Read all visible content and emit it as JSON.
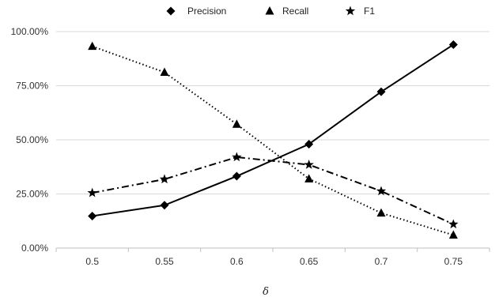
{
  "chart_data": {
    "type": "line",
    "title": "",
    "xlabel": "δ",
    "ylabel": "",
    "categories": [
      "0.5",
      "0.55",
      "0.6",
      "0.65",
      "0.7",
      "0.75"
    ],
    "y_ticks": [
      "0.00%",
      "25.00%",
      "50.00%",
      "75.00%",
      "100.00%"
    ],
    "ylim": [
      0,
      100
    ],
    "grid": "horizontal",
    "legend_position": "top",
    "series": [
      {
        "name": "Precision",
        "marker": "diamond",
        "line_style": "solid",
        "color": "#000000",
        "values": [
          14.8,
          19.8,
          33.2,
          48.0,
          72.2,
          94.0
        ]
      },
      {
        "name": "Recall",
        "marker": "triangle",
        "line_style": "dotted",
        "color": "#000000",
        "values": [
          93.2,
          81.2,
          57.2,
          32.0,
          16.2,
          6.0
        ]
      },
      {
        "name": "F1",
        "marker": "star",
        "line_style": "dashdot",
        "color": "#000000",
        "values": [
          25.5,
          31.8,
          42.0,
          38.5,
          26.3,
          11.0
        ]
      }
    ]
  }
}
